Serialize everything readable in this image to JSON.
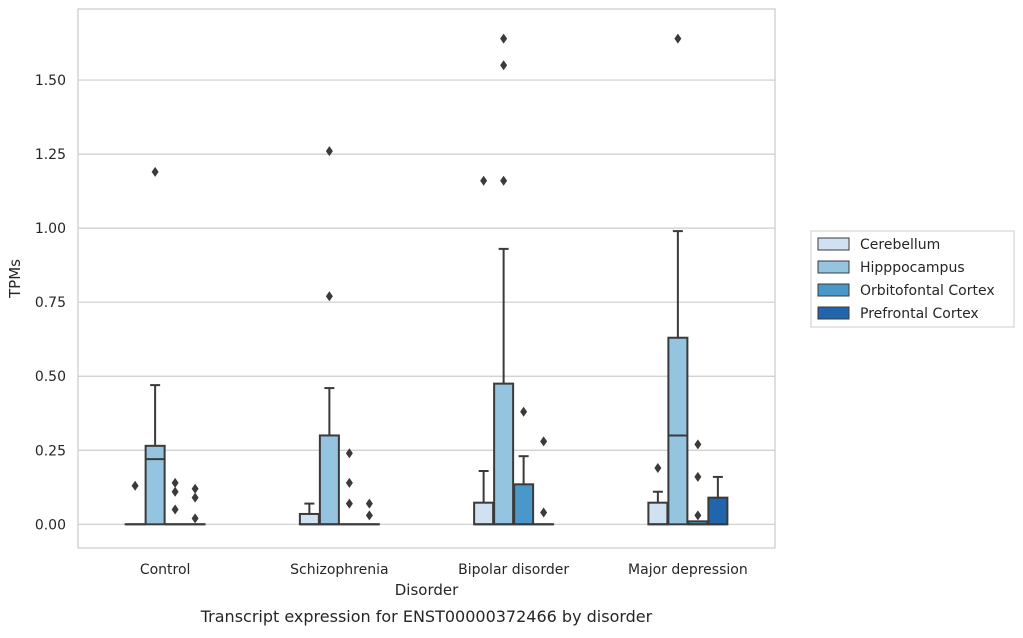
{
  "chart_data": {
    "type": "boxplot",
    "title": "",
    "caption": "Transcript expression for ENST00000372466 by disorder",
    "xlabel": "Disorder",
    "ylabel": "TPMs",
    "ylim": [
      -0.08,
      1.74
    ],
    "yticks": [
      0.0,
      0.25,
      0.5,
      0.75,
      1.0,
      1.25,
      1.5
    ],
    "ytick_labels": [
      "0.00",
      "0.25",
      "0.50",
      "0.75",
      "1.00",
      "1.25",
      "1.50"
    ],
    "grid": "horizontal",
    "legend_position": "right",
    "categories": [
      "Control",
      "Schizophrenia",
      "Bipolar disorder",
      "Major depression"
    ],
    "series": [
      {
        "name": "Cerebellum",
        "color": "#d0e1f2",
        "boxes": [
          {
            "q1": 0,
            "median": 0,
            "q3": 0,
            "whisker_low": 0,
            "whisker_high": 0,
            "outliers": [
              0.13
            ]
          },
          {
            "q1": 0,
            "median": 0,
            "q3": 0.035,
            "whisker_low": 0,
            "whisker_high": 0.07,
            "outliers": []
          },
          {
            "q1": 0,
            "median": 0,
            "q3": 0.073,
            "whisker_low": 0,
            "whisker_high": 0.18,
            "outliers": [
              1.16
            ]
          },
          {
            "q1": 0,
            "median": 0,
            "q3": 0.073,
            "whisker_low": 0,
            "whisker_high": 0.11,
            "outliers": [
              0.19
            ]
          }
        ]
      },
      {
        "name": "Hipppocampus",
        "color": "#94c4df",
        "boxes": [
          {
            "q1": 0,
            "median": 0.22,
            "q3": 0.265,
            "whisker_low": 0,
            "whisker_high": 0.47,
            "outliers": [
              1.19
            ]
          },
          {
            "q1": 0,
            "median": 0,
            "q3": 0.3,
            "whisker_low": 0,
            "whisker_high": 0.46,
            "outliers": [
              0.77,
              1.26
            ]
          },
          {
            "q1": 0,
            "median": 0,
            "q3": 0.475,
            "whisker_low": 0,
            "whisker_high": 0.93,
            "outliers": [
              1.16,
              1.55,
              1.64
            ]
          },
          {
            "q1": 0,
            "median": 0.3,
            "q3": 0.63,
            "whisker_low": 0,
            "whisker_high": 0.99,
            "outliers": [
              1.64
            ]
          }
        ]
      },
      {
        "name": "Orbitofontal Cortex",
        "color": "#4a98c9",
        "boxes": [
          {
            "q1": 0,
            "median": 0,
            "q3": 0,
            "whisker_low": 0,
            "whisker_high": 0,
            "outliers": [
              0.05,
              0.11,
              0.14
            ]
          },
          {
            "q1": 0,
            "median": 0,
            "q3": 0,
            "whisker_low": 0,
            "whisker_high": 0,
            "outliers": [
              0.07,
              0.14,
              0.24
            ]
          },
          {
            "q1": 0,
            "median": 0,
            "q3": 0.135,
            "whisker_low": 0,
            "whisker_high": 0.23,
            "outliers": [
              0.38
            ]
          },
          {
            "q1": 0,
            "median": 0,
            "q3": 0.01,
            "whisker_low": 0,
            "whisker_high": 0.01,
            "outliers": [
              0.03,
              0.16,
              0.27
            ]
          }
        ]
      },
      {
        "name": "Prefrontal Cortex",
        "color": "#2166ac",
        "boxes": [
          {
            "q1": 0,
            "median": 0,
            "q3": 0,
            "whisker_low": 0,
            "whisker_high": 0,
            "outliers": [
              0.02,
              0.09,
              0.12
            ]
          },
          {
            "q1": 0,
            "median": 0,
            "q3": 0,
            "whisker_low": 0,
            "whisker_high": 0,
            "outliers": [
              0.03,
              0.07
            ]
          },
          {
            "q1": 0,
            "median": 0,
            "q3": 0,
            "whisker_low": 0,
            "whisker_high": 0,
            "outliers": [
              0.04,
              0.28
            ]
          },
          {
            "q1": 0,
            "median": 0,
            "q3": 0.09,
            "whisker_low": 0,
            "whisker_high": 0.16,
            "outliers": []
          }
        ]
      }
    ]
  }
}
